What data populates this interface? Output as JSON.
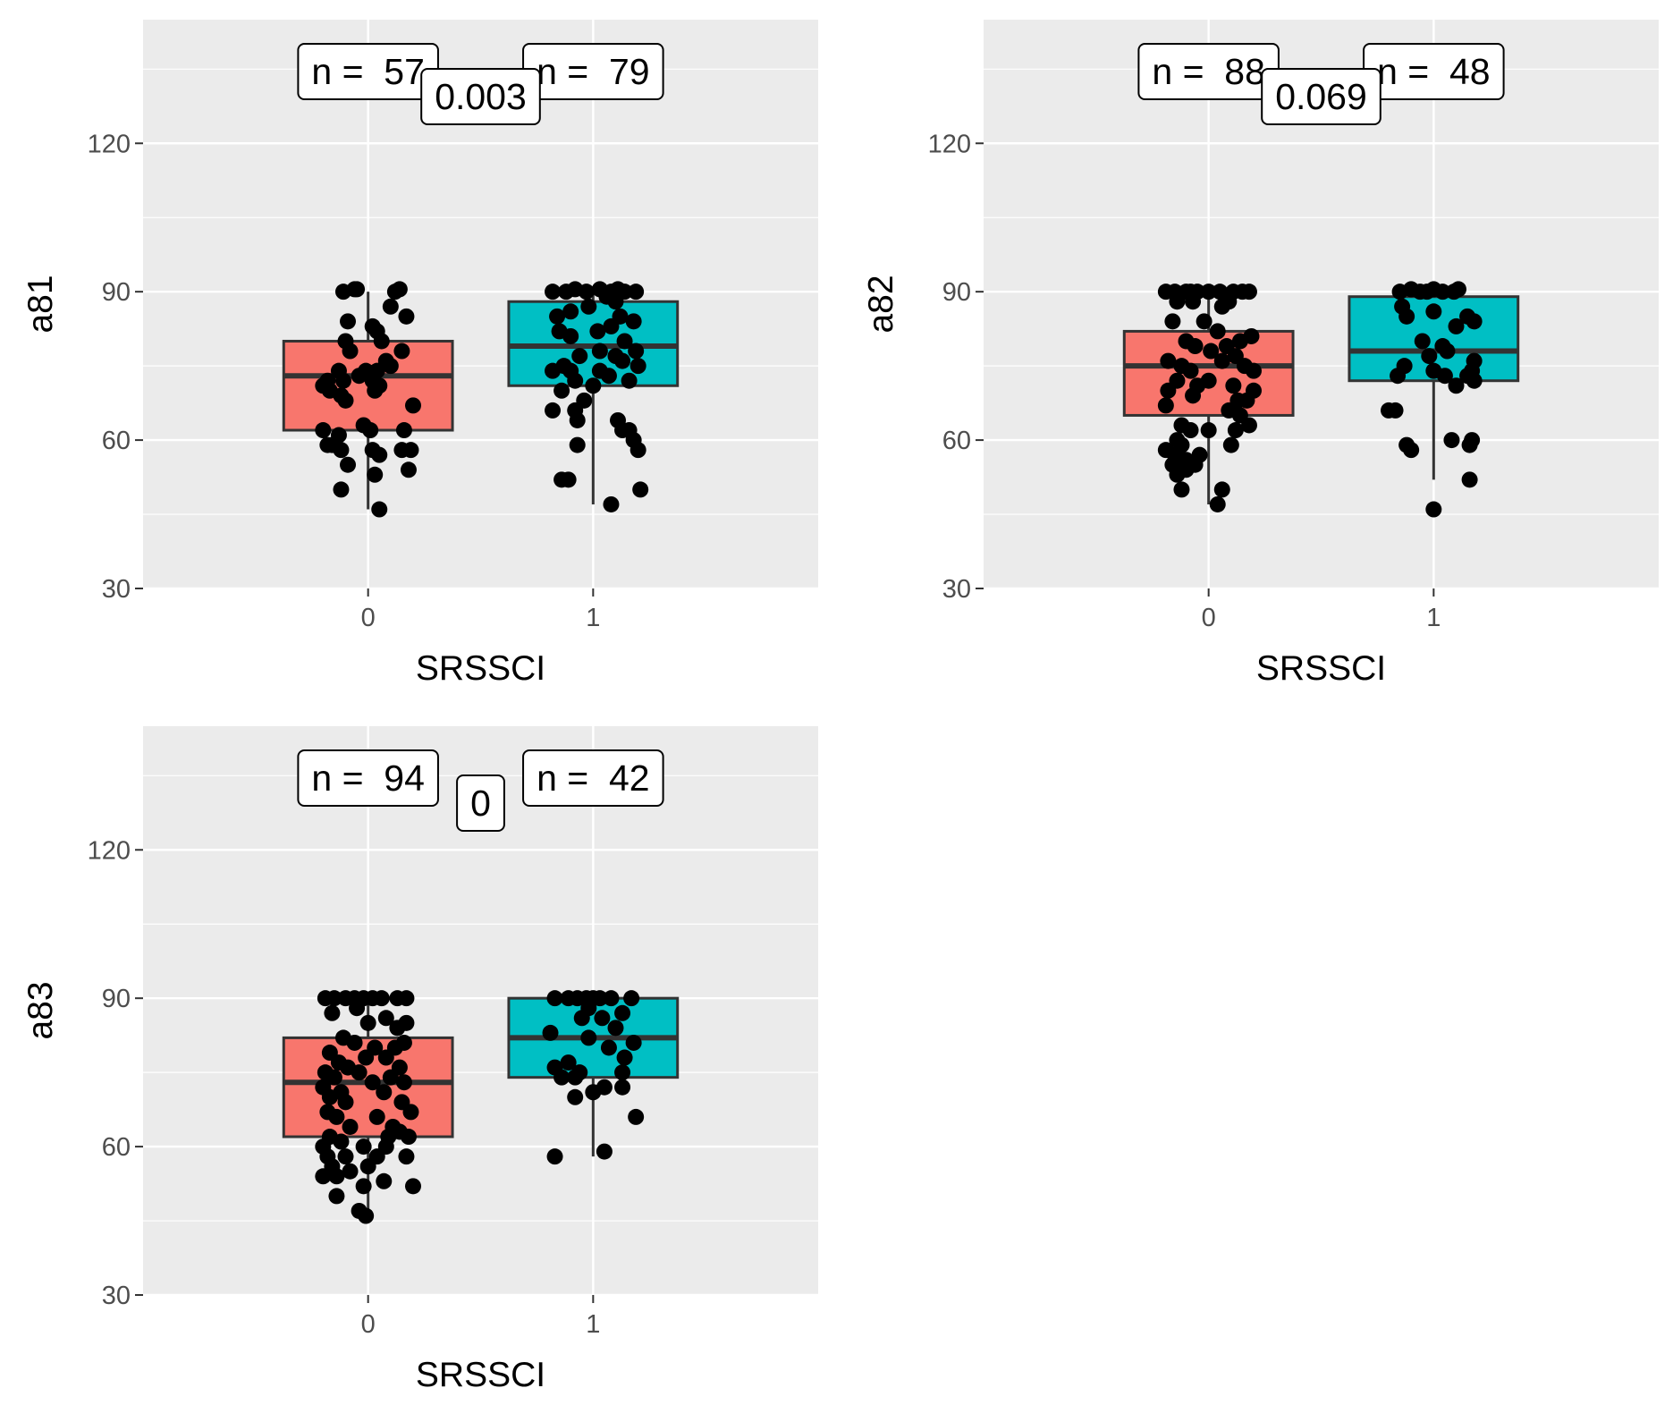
{
  "theme": {
    "panel_bg": "#EBEBEB",
    "grid": "#FFFFFF",
    "group_colors": [
      "#F8766D",
      "#00BFC4"
    ],
    "box_stroke": "#333333",
    "point_color": "#000000"
  },
  "chart_data": [
    {
      "type": "box",
      "xlabel": "SRSSCI",
      "ylabel": "a81",
      "categories": [
        "0",
        "1"
      ],
      "yticks": [
        30,
        60,
        90,
        120
      ],
      "ylim": [
        30,
        145
      ],
      "count_labels": [
        "n =  57",
        "n =  79"
      ],
      "p_label": "0.003",
      "boxes": [
        {
          "q1": 62,
          "median": 73,
          "q3": 80,
          "whisker_low": 46,
          "whisker_high": 90
        },
        {
          "q1": 71,
          "median": 79,
          "q3": 88,
          "whisker_low": 47,
          "whisker_high": 90
        }
      ],
      "points": [
        [
          [
            -0.11,
            90
          ],
          [
            -0.06,
            90.5
          ],
          [
            -0.05,
            90.5
          ],
          [
            0.12,
            90
          ],
          [
            0.14,
            90.5
          ],
          [
            -0.09,
            84
          ],
          [
            0.1,
            87
          ],
          [
            0.17,
            85
          ],
          [
            0.02,
            83
          ],
          [
            0.04,
            82
          ],
          [
            0.06,
            80
          ],
          [
            -0.1,
            80
          ],
          [
            -0.08,
            78
          ],
          [
            0.15,
            78
          ],
          [
            0.08,
            76
          ],
          [
            0.1,
            75
          ],
          [
            -0.13,
            74
          ],
          [
            -0.01,
            74
          ],
          [
            0.04,
            74
          ],
          [
            -0.04,
            73
          ],
          [
            0.02,
            72
          ],
          [
            -0.18,
            72
          ],
          [
            -0.2,
            71
          ],
          [
            -0.11,
            72
          ],
          [
            0.05,
            71
          ],
          [
            -0.17,
            70
          ],
          [
            -0.12,
            69
          ],
          [
            0.03,
            70
          ],
          [
            -0.1,
            68
          ],
          [
            0.2,
            67
          ],
          [
            -0.2,
            62
          ],
          [
            -0.13,
            61
          ],
          [
            -0.02,
            63
          ],
          [
            0.01,
            62
          ],
          [
            0.16,
            62
          ],
          [
            -0.16,
            59
          ],
          [
            -0.12,
            58
          ],
          [
            0.02,
            58
          ],
          [
            -0.18,
            59
          ],
          [
            0.15,
            58
          ],
          [
            0.19,
            58
          ],
          [
            0.05,
            57
          ],
          [
            -0.09,
            55
          ],
          [
            0.03,
            53
          ],
          [
            0.18,
            54
          ],
          [
            -0.12,
            50
          ],
          [
            0.05,
            46
          ]
        ],
        [
          [
            -0.18,
            90
          ],
          [
            -0.12,
            90
          ],
          [
            -0.08,
            90.5
          ],
          [
            -0.03,
            90
          ],
          [
            0.03,
            90.5
          ],
          [
            0.08,
            90
          ],
          [
            0.11,
            90.5
          ],
          [
            0.14,
            90
          ],
          [
            0.19,
            90
          ],
          [
            0.06,
            89
          ],
          [
            -0.02,
            87
          ],
          [
            0.1,
            88
          ],
          [
            -0.1,
            86
          ],
          [
            -0.16,
            85
          ],
          [
            0.12,
            85
          ],
          [
            0.08,
            83
          ],
          [
            0.18,
            84
          ],
          [
            -0.15,
            82
          ],
          [
            0.02,
            82
          ],
          [
            -0.1,
            81
          ],
          [
            0.14,
            80
          ],
          [
            0.19,
            78
          ],
          [
            -0.06,
            77
          ],
          [
            0.03,
            78
          ],
          [
            0.1,
            77
          ],
          [
            0.13,
            76
          ],
          [
            -0.13,
            75
          ],
          [
            -0.1,
            74
          ],
          [
            -0.18,
            74
          ],
          [
            0.03,
            74
          ],
          [
            0.2,
            75
          ],
          [
            -0.08,
            72
          ],
          [
            0.07,
            73
          ],
          [
            -0.14,
            70
          ],
          [
            0.0,
            71
          ],
          [
            0.16,
            72
          ],
          [
            -0.04,
            68
          ],
          [
            -0.08,
            66
          ],
          [
            -0.18,
            66
          ],
          [
            -0.07,
            64
          ],
          [
            0.11,
            64
          ],
          [
            0.13,
            62
          ],
          [
            0.16,
            62
          ],
          [
            0.18,
            60
          ],
          [
            -0.07,
            59
          ],
          [
            0.2,
            58
          ],
          [
            -0.14,
            52
          ],
          [
            -0.11,
            52
          ],
          [
            0.21,
            50
          ],
          [
            0.08,
            47
          ]
        ]
      ]
    },
    {
      "type": "box",
      "xlabel": "SRSSCI",
      "ylabel": "a82",
      "categories": [
        "0",
        "1"
      ],
      "yticks": [
        30,
        60,
        90,
        120
      ],
      "ylim": [
        30,
        145
      ],
      "count_labels": [
        "n =  88",
        "n =  48"
      ],
      "p_label": "0.069",
      "boxes": [
        {
          "q1": 65,
          "median": 75,
          "q3": 82,
          "whisker_low": 47,
          "whisker_high": 90
        },
        {
          "q1": 72,
          "median": 78,
          "q3": 89,
          "whisker_low": 52,
          "whisker_high": 90
        }
      ],
      "points": [
        [
          [
            -0.19,
            90
          ],
          [
            -0.15,
            90
          ],
          [
            -0.1,
            90
          ],
          [
            -0.08,
            90
          ],
          [
            -0.05,
            90
          ],
          [
            0.0,
            90
          ],
          [
            0.05,
            90
          ],
          [
            0.11,
            90
          ],
          [
            0.15,
            90
          ],
          [
            0.18,
            90
          ],
          [
            -0.14,
            88
          ],
          [
            -0.07,
            88
          ],
          [
            0.06,
            87
          ],
          [
            0.09,
            88
          ],
          [
            -0.16,
            84
          ],
          [
            -0.02,
            84
          ],
          [
            0.04,
            82
          ],
          [
            0.14,
            80
          ],
          [
            0.19,
            81
          ],
          [
            -0.1,
            80
          ],
          [
            -0.06,
            79
          ],
          [
            0.01,
            78
          ],
          [
            0.08,
            79
          ],
          [
            0.12,
            77
          ],
          [
            -0.18,
            76
          ],
          [
            -0.12,
            75
          ],
          [
            0.06,
            76
          ],
          [
            0.16,
            75
          ],
          [
            0.2,
            74
          ],
          [
            -0.08,
            74
          ],
          [
            -0.14,
            72
          ],
          [
            0.0,
            72
          ],
          [
            -0.05,
            71
          ],
          [
            0.11,
            71
          ],
          [
            -0.18,
            70
          ],
          [
            0.2,
            70
          ],
          [
            -0.07,
            69
          ],
          [
            0.13,
            68
          ],
          [
            0.17,
            68
          ],
          [
            -0.19,
            67
          ],
          [
            0.09,
            66
          ],
          [
            0.14,
            65
          ],
          [
            -0.12,
            63
          ],
          [
            -0.08,
            62
          ],
          [
            0.0,
            62
          ],
          [
            0.12,
            62
          ],
          [
            0.18,
            63
          ],
          [
            -0.14,
            60
          ],
          [
            -0.12,
            59
          ],
          [
            -0.19,
            58
          ],
          [
            -0.15,
            57
          ],
          [
            0.1,
            59
          ],
          [
            -0.04,
            57
          ],
          [
            -0.1,
            56
          ],
          [
            -0.06,
            55
          ],
          [
            -0.16,
            55
          ],
          [
            -0.14,
            53
          ],
          [
            -0.1,
            54
          ],
          [
            0.06,
            50
          ],
          [
            -0.12,
            50
          ],
          [
            0.04,
            47
          ]
        ],
        [
          [
            -0.15,
            90
          ],
          [
            -0.1,
            90.5
          ],
          [
            -0.06,
            90
          ],
          [
            -0.03,
            90
          ],
          [
            0.0,
            90.5
          ],
          [
            0.04,
            90
          ],
          [
            0.09,
            90
          ],
          [
            0.11,
            90.5
          ],
          [
            -0.14,
            87
          ],
          [
            -0.12,
            85
          ],
          [
            0.0,
            86
          ],
          [
            0.15,
            85
          ],
          [
            0.18,
            84
          ],
          [
            0.1,
            83
          ],
          [
            -0.05,
            80
          ],
          [
            0.04,
            79
          ],
          [
            0.06,
            78
          ],
          [
            -0.02,
            77
          ],
          [
            0.18,
            76
          ],
          [
            -0.13,
            75
          ],
          [
            0.17,
            74
          ],
          [
            0.0,
            74
          ],
          [
            -0.16,
            73
          ],
          [
            0.05,
            73
          ],
          [
            0.15,
            73
          ],
          [
            0.18,
            72
          ],
          [
            0.1,
            71
          ],
          [
            -0.2,
            66
          ],
          [
            -0.17,
            66
          ],
          [
            0.08,
            60
          ],
          [
            0.17,
            60
          ],
          [
            -0.12,
            59
          ],
          [
            -0.1,
            58
          ],
          [
            0.16,
            59
          ],
          [
            0.16,
            52
          ],
          [
            0.0,
            46
          ]
        ]
      ]
    },
    {
      "type": "box",
      "xlabel": "SRSSCI",
      "ylabel": "a83",
      "categories": [
        "0",
        "1"
      ],
      "yticks": [
        30,
        60,
        90,
        120
      ],
      "ylim": [
        30,
        145
      ],
      "count_labels": [
        "n =  94",
        "n =  42"
      ],
      "p_label": "0",
      "boxes": [
        {
          "q1": 62,
          "median": 73,
          "q3": 82,
          "whisker_low": 46,
          "whisker_high": 90
        },
        {
          "q1": 74,
          "median": 82,
          "q3": 90,
          "whisker_low": 58,
          "whisker_high": 90
        }
      ],
      "points": [
        [
          [
            -0.19,
            90
          ],
          [
            -0.15,
            90
          ],
          [
            -0.1,
            90
          ],
          [
            -0.06,
            90
          ],
          [
            -0.02,
            90
          ],
          [
            0.02,
            90
          ],
          [
            0.06,
            90
          ],
          [
            0.13,
            90
          ],
          [
            0.17,
            90
          ],
          [
            -0.16,
            87
          ],
          [
            -0.05,
            88
          ],
          [
            0.0,
            85
          ],
          [
            0.08,
            86
          ],
          [
            0.13,
            84
          ],
          [
            0.17,
            85
          ],
          [
            -0.11,
            82
          ],
          [
            -0.06,
            81
          ],
          [
            0.03,
            80
          ],
          [
            0.16,
            81
          ],
          [
            -0.17,
            79
          ],
          [
            -0.01,
            78
          ],
          [
            0.08,
            78
          ],
          [
            0.12,
            80
          ],
          [
            -0.13,
            77
          ],
          [
            -0.09,
            76
          ],
          [
            0.14,
            76
          ],
          [
            -0.19,
            75
          ],
          [
            -0.15,
            74
          ],
          [
            -0.04,
            75
          ],
          [
            0.02,
            73
          ],
          [
            0.1,
            74
          ],
          [
            0.16,
            73
          ],
          [
            -0.2,
            72
          ],
          [
            -0.12,
            71
          ],
          [
            0.07,
            71
          ],
          [
            -0.17,
            70
          ],
          [
            -0.1,
            69
          ],
          [
            0.15,
            69
          ],
          [
            -0.18,
            67
          ],
          [
            -0.14,
            66
          ],
          [
            0.04,
            66
          ],
          [
            0.19,
            67
          ],
          [
            -0.08,
            64
          ],
          [
            0.11,
            64
          ],
          [
            0.14,
            63
          ],
          [
            -0.17,
            62
          ],
          [
            0.09,
            62
          ],
          [
            0.18,
            62
          ],
          [
            -0.2,
            60
          ],
          [
            -0.12,
            61
          ],
          [
            -0.02,
            60
          ],
          [
            0.08,
            60
          ],
          [
            -0.18,
            58
          ],
          [
            -0.1,
            58
          ],
          [
            0.04,
            58
          ],
          [
            0.17,
            58
          ],
          [
            -0.16,
            56
          ],
          [
            -0.08,
            55
          ],
          [
            0.0,
            56
          ],
          [
            -0.2,
            54
          ],
          [
            -0.14,
            54
          ],
          [
            -0.02,
            52
          ],
          [
            0.07,
            53
          ],
          [
            0.2,
            52
          ],
          [
            -0.14,
            50
          ],
          [
            -0.04,
            47
          ],
          [
            -0.01,
            46
          ]
        ],
        [
          [
            -0.17,
            90
          ],
          [
            -0.11,
            90
          ],
          [
            -0.07,
            90
          ],
          [
            -0.03,
            90
          ],
          [
            0.0,
            90
          ],
          [
            0.03,
            90
          ],
          [
            0.08,
            90
          ],
          [
            0.17,
            90
          ],
          [
            -0.02,
            88
          ],
          [
            0.13,
            87
          ],
          [
            -0.05,
            86
          ],
          [
            0.04,
            86
          ],
          [
            0.1,
            84
          ],
          [
            -0.19,
            83
          ],
          [
            -0.02,
            82
          ],
          [
            0.18,
            81
          ],
          [
            0.07,
            80
          ],
          [
            0.14,
            78
          ],
          [
            -0.11,
            77
          ],
          [
            0.13,
            75
          ],
          [
            -0.17,
            76
          ],
          [
            -0.06,
            75
          ],
          [
            -0.14,
            74
          ],
          [
            -0.08,
            74
          ],
          [
            0.13,
            72
          ],
          [
            0.05,
            72
          ],
          [
            0.0,
            71
          ],
          [
            -0.08,
            70
          ],
          [
            0.19,
            66
          ],
          [
            -0.17,
            58
          ],
          [
            0.05,
            59
          ]
        ]
      ]
    }
  ]
}
